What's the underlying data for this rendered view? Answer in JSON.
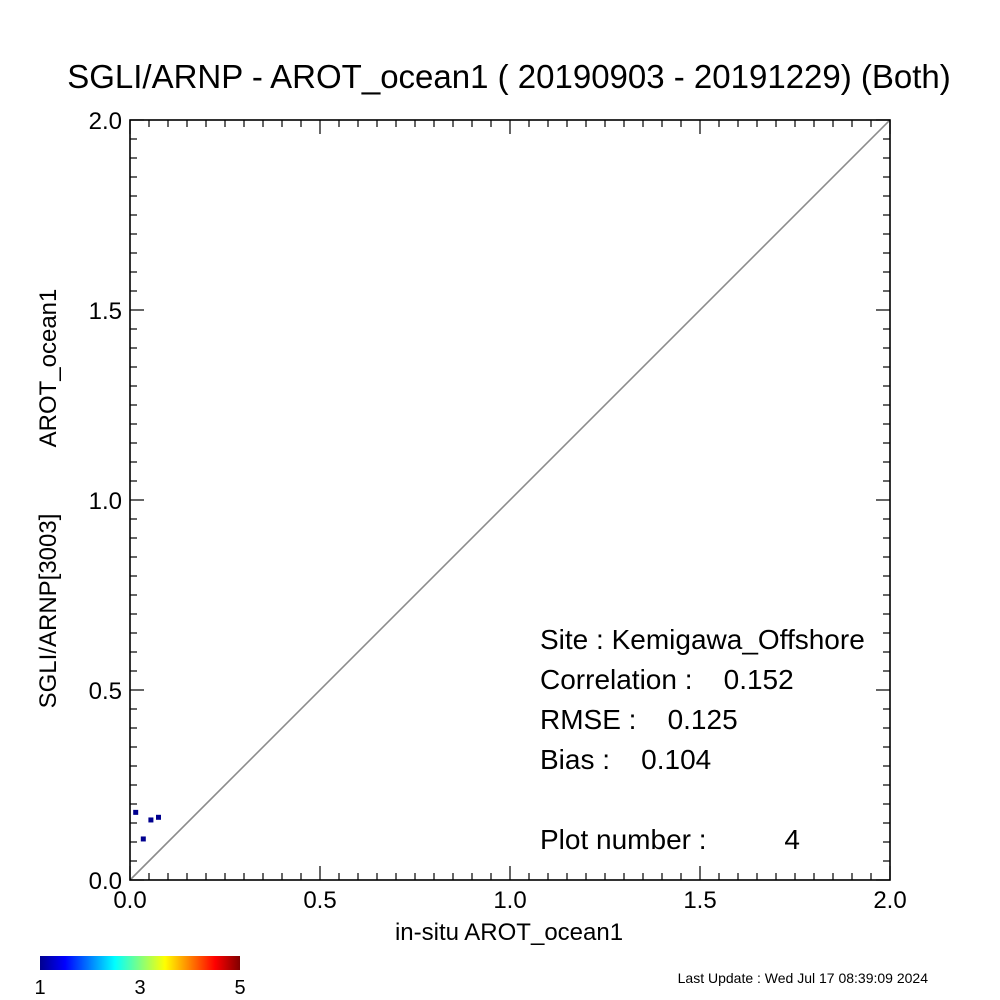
{
  "chart_data": {
    "type": "scatter",
    "title": "SGLI/ARNP - AROT_ocean1 ( 20190903 - 20191229) (Both)",
    "xlabel": "in-situ AROT_ocean1",
    "ylabel_lines": [
      "SGLI/ARNP[3003]",
      "AROT_ocean1"
    ],
    "xlim": [
      0.0,
      2.0
    ],
    "ylim": [
      0.0,
      2.0
    ],
    "x_tick_labels": [
      "0.0",
      "0.5",
      "1.0",
      "1.5",
      "2.0"
    ],
    "y_tick_labels": [
      "0.0",
      "0.5",
      "1.0",
      "1.5",
      "2.0"
    ],
    "x_ticks": [
      0.0,
      0.5,
      1.0,
      1.5,
      2.0
    ],
    "y_ticks": [
      0.0,
      0.5,
      1.0,
      1.5,
      2.0
    ],
    "reference_line": "1:1",
    "reference_line_color": "#8c8c8c",
    "points": [
      {
        "x": 0.015,
        "y": 0.178
      },
      {
        "x": 0.035,
        "y": 0.108
      },
      {
        "x": 0.055,
        "y": 0.158
      },
      {
        "x": 0.075,
        "y": 0.165
      }
    ],
    "point_color": "#00008f",
    "stats": {
      "site": "Site : Kemigawa_Offshore",
      "correlation": "Correlation :    0.152",
      "rmse": "RMSE :    0.125",
      "bias": "Bias :    0.104",
      "plot_number": "Plot number :          4"
    },
    "colorbar": {
      "colormap": "jet",
      "labels": [
        "1",
        "3",
        "5"
      ],
      "stops": [
        "#00008f",
        "#0000ff",
        "#0080ff",
        "#00ffff",
        "#80ff80",
        "#ffff00",
        "#ff8000",
        "#ff0000",
        "#800000"
      ]
    },
    "last_update": "Last Update : Wed Jul 17 08:39:09 2024"
  }
}
